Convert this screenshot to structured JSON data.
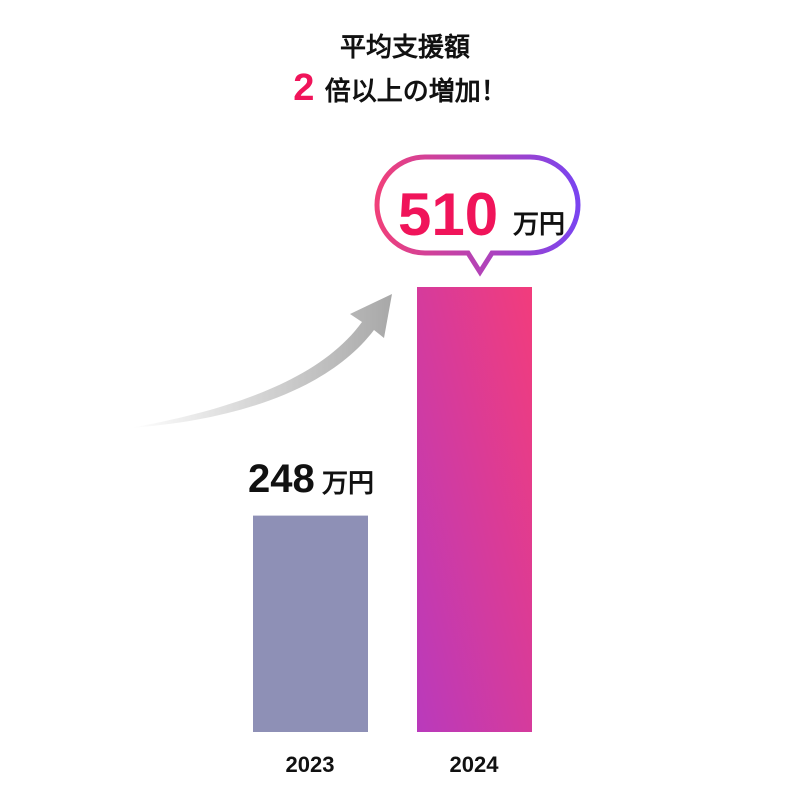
{
  "chart_data": {
    "type": "bar",
    "title_line1": "平均支援額",
    "title_highlight": "2",
    "title_line2": "倍以上の増加！",
    "categories": [
      "2023",
      "2024"
    ],
    "values": [
      248,
      510
    ],
    "value_labels": [
      "248",
      "510"
    ],
    "unit": "万円",
    "xlabel": "",
    "ylabel": "",
    "ylim": [
      0,
      510
    ],
    "grid": false,
    "colors": {
      "bar_2023": "#8e90b6",
      "bar_2024_top": "#f23c7c",
      "bar_2024_bottom": "#b93abc",
      "highlight_text": "#f0145a",
      "bubble_start": "#f0407a",
      "bubble_end": "#7a44f0",
      "arrow": "#c8c8c8"
    }
  }
}
